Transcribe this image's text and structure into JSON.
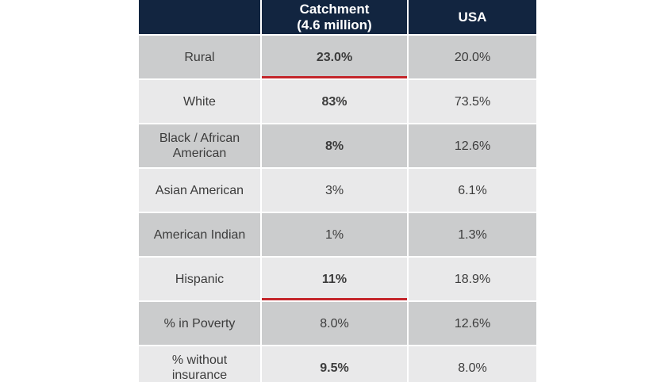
{
  "table": {
    "header": {
      "catchment_line1": "Catchment",
      "catchment_line2": "(4.6 million)",
      "usa": "USA"
    },
    "rows": [
      {
        "label": "Rural",
        "catchment": "23.0%",
        "usa": "20.0%",
        "bold": true,
        "underline": true,
        "shade": "dark"
      },
      {
        "label": "White",
        "catchment": "83%",
        "usa": "73.5%",
        "bold": true,
        "underline": false,
        "shade": "light"
      },
      {
        "label": "Black / African American",
        "catchment": "8%",
        "usa": "12.6%",
        "bold": true,
        "underline": false,
        "shade": "dark"
      },
      {
        "label": "Asian American",
        "catchment": "3%",
        "usa": "6.1%",
        "bold": false,
        "underline": false,
        "shade": "light"
      },
      {
        "label": "American Indian",
        "catchment": "1%",
        "usa": "1.3%",
        "bold": false,
        "underline": false,
        "shade": "dark"
      },
      {
        "label": "Hispanic",
        "catchment": "11%",
        "usa": "18.9%",
        "bold": true,
        "underline": true,
        "shade": "light"
      },
      {
        "label": "% in Poverty",
        "catchment": "8.0%",
        "usa": "12.6%",
        "bold": false,
        "underline": false,
        "shade": "dark"
      },
      {
        "label": "% without insurance",
        "catchment": "9.5%",
        "usa": "8.0%",
        "bold": true,
        "underline": false,
        "shade": "light"
      }
    ],
    "colors": {
      "header_bg": "#122540",
      "header_text": "#FFFFFF",
      "row_dark": "#CBCCCD",
      "row_light": "#E9E9EA",
      "text": "#3C3C3C",
      "accent_red": "#C4262B",
      "background": "#FFFFFF"
    }
  },
  "chart_data": {
    "type": "table",
    "title": "",
    "columns": [
      "",
      "Catchment (4.6 million)",
      "USA"
    ],
    "rows": [
      [
        "Rural",
        "23.0%",
        "20.0%"
      ],
      [
        "White",
        "83%",
        "73.5%"
      ],
      [
        "Black / African American",
        "8%",
        "12.6%"
      ],
      [
        "Asian American",
        "3%",
        "6.1%"
      ],
      [
        "American Indian",
        "1%",
        "1.3%"
      ],
      [
        "Hispanic",
        "11%",
        "18.9%"
      ],
      [
        "% in Poverty",
        "8.0%",
        "12.6%"
      ],
      [
        "% without insurance",
        "9.5%",
        "8.0%"
      ]
    ],
    "highlighted_cells": [
      {
        "row": "Rural",
        "column": "Catchment (4.6 million)",
        "style": "bold + red underline"
      },
      {
        "row": "Hispanic",
        "column": "Catchment (4.6 million)",
        "style": "bold + red underline"
      }
    ],
    "legend_position": "none",
    "grid": "off"
  }
}
